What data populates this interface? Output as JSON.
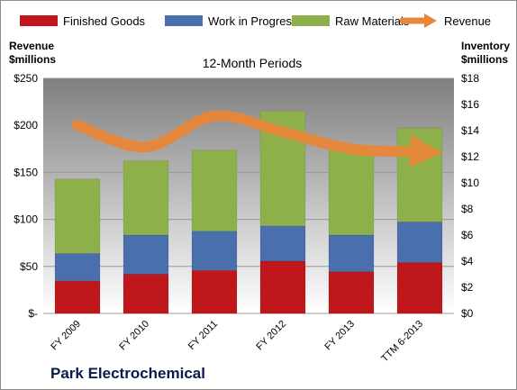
{
  "company": "Park Electrochemical",
  "chart_data": {
    "type": "bar",
    "subtype": "stacked-bar-with-line",
    "title": "12-Month Periods",
    "categories": [
      "FY 2009",
      "FY 2010",
      "FY 2011",
      "FY 2012",
      "FY 2013",
      "TTM 6-2013"
    ],
    "left_axis": {
      "label_line1": "Revenue",
      "label_line2": "$millions",
      "range": [
        0,
        250
      ],
      "tick_values": [
        0,
        50,
        100,
        150,
        200,
        250
      ],
      "tick_labels": [
        "$-",
        "$50",
        "$100",
        "$150",
        "$200",
        "$250"
      ]
    },
    "right_axis": {
      "label_line1": "Inventory",
      "label_line2": "$millions",
      "range": [
        0,
        18
      ],
      "tick_values": [
        0,
        2,
        4,
        6,
        8,
        10,
        12,
        14,
        16,
        18
      ],
      "tick_labels": [
        "$0",
        "$2",
        "$4",
        "$6",
        "$8",
        "$10",
        "$12",
        "$14",
        "$16",
        "$18"
      ]
    },
    "series": [
      {
        "name": "Finished Goods",
        "kind": "bar",
        "axis": "right",
        "color": "#c0171c",
        "values": [
          2.5,
          3.0,
          3.3,
          4.0,
          3.2,
          3.9
        ]
      },
      {
        "name": "Work in Progress",
        "kind": "bar",
        "axis": "right",
        "color": "#4a6fad",
        "values": [
          2.1,
          3.0,
          3.0,
          2.7,
          2.8,
          3.1
        ]
      },
      {
        "name": "Raw Materials",
        "kind": "bar",
        "axis": "right",
        "color": "#8db04b",
        "values": [
          5.7,
          5.7,
          6.2,
          8.8,
          6.7,
          7.2
        ]
      },
      {
        "name": "Revenue",
        "kind": "line",
        "axis": "left",
        "color": "#e8873a",
        "values": [
          200,
          177,
          210,
          193,
          175,
          172
        ]
      }
    ],
    "grid": true,
    "legend_position": "top"
  }
}
